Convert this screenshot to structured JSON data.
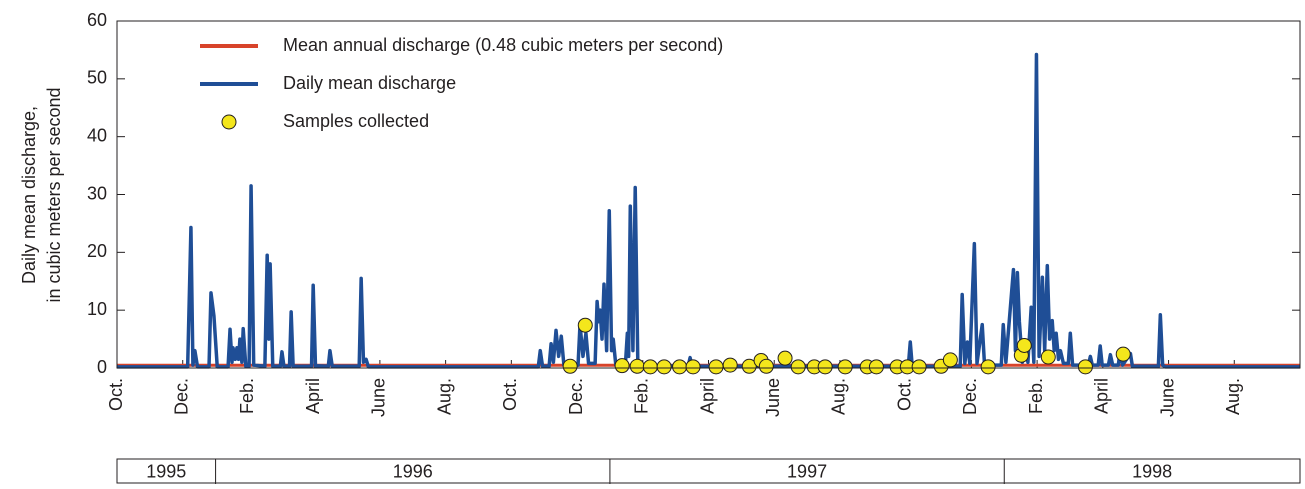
{
  "chart_data": {
    "type": "line",
    "y_label": [
      "Daily mean discharge,",
      "in cubic meters per second"
    ],
    "ylim": [
      0,
      60
    ],
    "yticks": [
      0,
      10,
      20,
      30,
      40,
      50,
      60
    ],
    "xlim": [
      0,
      36
    ],
    "xticks": [
      {
        "value": 0,
        "label": "Oct."
      },
      {
        "value": 2,
        "label": "Dec."
      },
      {
        "value": 4,
        "label": "Feb."
      },
      {
        "value": 6,
        "label": "April"
      },
      {
        "value": 8,
        "label": "June"
      },
      {
        "value": 10,
        "label": "Aug."
      },
      {
        "value": 12,
        "label": "Oct."
      },
      {
        "value": 14,
        "label": "Dec."
      },
      {
        "value": 16,
        "label": "Feb."
      },
      {
        "value": 18,
        "label": "April"
      },
      {
        "value": 20,
        "label": "June"
      },
      {
        "value": 22,
        "label": "Aug."
      },
      {
        "value": 24,
        "label": "Oct."
      },
      {
        "value": 26,
        "label": "Dec."
      },
      {
        "value": 28,
        "label": "Feb."
      },
      {
        "value": 30,
        "label": "April"
      },
      {
        "value": 32,
        "label": "June"
      },
      {
        "value": 34,
        "label": "Aug."
      }
    ],
    "years": [
      {
        "label": "1995",
        "from": 0,
        "to": 3
      },
      {
        "label": "1996",
        "from": 3,
        "to": 15
      },
      {
        "label": "1997",
        "from": 15,
        "to": 27
      },
      {
        "label": "1998",
        "from": 27,
        "to": 36
      }
    ],
    "series": [
      {
        "name": "Mean annual discharge (0.48 cubic meters per second)",
        "type": "line",
        "color": "#d8432a",
        "x": [
          0,
          36
        ],
        "values": [
          0.48,
          0.48
        ]
      },
      {
        "name": "Daily mean discharge",
        "type": "line",
        "color": "#1f4e96",
        "x": [
          0,
          2.15,
          2.25,
          2.31,
          2.37,
          2.45,
          2.8,
          2.86,
          2.95,
          3.05,
          3.38,
          3.44,
          3.5,
          3.53,
          3.6,
          3.65,
          3.7,
          3.74,
          3.8,
          3.84,
          3.92,
          4.02,
          4.08,
          4.16,
          4.5,
          4.57,
          4.62,
          4.66,
          4.74,
          4.97,
          5.02,
          5.08,
          5.25,
          5.3,
          5.36,
          5.92,
          5.97,
          6.04,
          6.43,
          6.48,
          6.55,
          7.37,
          7.43,
          7.5,
          7.58,
          7.65,
          12.82,
          12.88,
          12.95,
          13.15,
          13.21,
          13.28,
          13.36,
          13.44,
          13.52,
          13.6,
          14.03,
          14.09,
          14.18,
          14.27,
          14.35,
          14.55,
          14.61,
          14.66,
          14.7,
          14.76,
          14.82,
          14.9,
          14.98,
          15.05,
          15.1,
          15.18,
          15.47,
          15.53,
          15.57,
          15.62,
          15.7,
          15.77,
          15.85,
          17.38,
          17.44,
          17.5,
          24.08,
          24.14,
          24.2,
          25.66,
          25.72,
          25.8,
          25.88,
          25.95,
          26.09,
          26.17,
          26.33,
          26.4,
          26.91,
          26.97,
          27.05,
          27.28,
          27.34,
          27.4,
          27.46,
          27.55,
          27.64,
          27.72,
          27.82,
          27.9,
          27.98,
          28.06,
          28.16,
          28.23,
          28.31,
          28.38,
          28.46,
          28.52,
          28.58,
          28.65,
          28.71,
          28.8,
          28.95,
          29.01,
          29.08,
          29.56,
          29.62,
          29.68,
          29.86,
          29.92,
          29.98,
          30.17,
          30.23,
          30.3,
          30.47,
          30.53,
          30.6,
          30.84,
          30.9,
          31.69,
          31.75,
          31.82,
          31.9,
          36
        ],
        "values": [
          0.2,
          0.2,
          24.3,
          0.5,
          3,
          0.2,
          0.2,
          13,
          9,
          0.2,
          0.2,
          6.7,
          1,
          3.5,
          1.5,
          3.5,
          1.5,
          5,
          1,
          6.8,
          0.3,
          0.3,
          31.5,
          0.5,
          0.3,
          19.5,
          5,
          18,
          0.3,
          0.3,
          2.8,
          0.3,
          0.3,
          9.7,
          0.3,
          0.3,
          14.3,
          0.4,
          0.3,
          3,
          0.3,
          0.3,
          15.5,
          1,
          1.5,
          0.2,
          0.2,
          3,
          0.3,
          0.3,
          4.2,
          1,
          6.5,
          2,
          5.5,
          0.5,
          0.5,
          7.5,
          2,
          6,
          0.8,
          0.8,
          11.5,
          8,
          10,
          5,
          14.5,
          3,
          27.2,
          3,
          5,
          0.5,
          0.5,
          6,
          2,
          28,
          3,
          31.2,
          0.5,
          0.3,
          1.8,
          0.3,
          0.3,
          4.5,
          0.3,
          0.3,
          12.7,
          0.8,
          4.5,
          0.8,
          21.5,
          0.8,
          7.5,
          0.5,
          0.5,
          7.5,
          1,
          17,
          3,
          16.5,
          8,
          1,
          4.5,
          1,
          10.5,
          1,
          54.2,
          2,
          15.7,
          3,
          17.7,
          5,
          8.2,
          3,
          6,
          1.5,
          3,
          0.8,
          0.8,
          6,
          0.5,
          0.5,
          2,
          0.5,
          0.5,
          3.8,
          0.5,
          0.5,
          2.3,
          0.5,
          0.5,
          3,
          0.5,
          2.5,
          0.3,
          0.3,
          9.2,
          0.5,
          0.2,
          0.2
        ]
      },
      {
        "name": "Samples collected",
        "type": "scatter",
        "color": "#f4e61c",
        "x": [
          13.79,
          14.25,
          15.37,
          15.83,
          16.23,
          16.65,
          17.12,
          17.53,
          18.23,
          18.66,
          19.24,
          19.6,
          19.76,
          20.33,
          20.73,
          21.22,
          21.55,
          22.16,
          22.83,
          23.11,
          23.74,
          24.05,
          24.41,
          25.08,
          25.36,
          26.51,
          27.52,
          27.61,
          28.34,
          29.47,
          30.62
        ],
        "values": [
          0.3,
          7.4,
          0.4,
          0.3,
          0.2,
          0.2,
          0.2,
          0.2,
          0.2,
          0.5,
          0.3,
          1.3,
          0.3,
          1.7,
          0.2,
          0.2,
          0.2,
          0.2,
          0.2,
          0.2,
          0.2,
          0.2,
          0.2,
          0.3,
          1.4,
          0.2,
          2.2,
          3.9,
          1.9,
          0.2,
          2.4
        ]
      }
    ]
  }
}
